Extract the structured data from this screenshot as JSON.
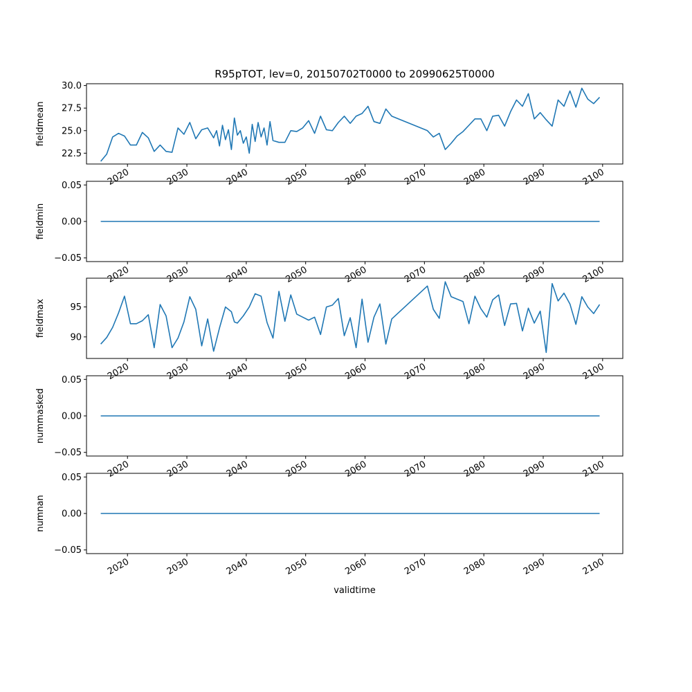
{
  "chart_data": {
    "type": "line",
    "title": "R95pTOT, lev=0, 20150702T0000 to 20990625T0000",
    "xlabel": "validtime",
    "xlim": [
      2013.1,
      2103.4
    ],
    "x_ticks": [
      2020,
      2030,
      2040,
      2050,
      2060,
      2070,
      2080,
      2090,
      2100
    ],
    "x_tick_labels": [
      "2020",
      "2030",
      "2040",
      "2050",
      "2060",
      "2070",
      "2080",
      "2090",
      "2100"
    ],
    "line_color": "#1f77b4",
    "panels": [
      {
        "ylabel": "fieldmean",
        "ylim": [
          21.3,
          30.2
        ],
        "y_ticks": [
          22.5,
          25.0,
          27.5,
          30.0
        ],
        "y_tick_labels": [
          "22.5",
          "25.0",
          "27.5",
          "30.0"
        ],
        "x": [
          2015.5,
          2016.5,
          2017.5,
          2018.5,
          2019.5,
          2020.5,
          2021.5,
          2022.5,
          2023.5,
          2024.5,
          2025.5,
          2026.5,
          2027.5,
          2028.5,
          2029.5,
          2030.5,
          2031.5,
          2032.5,
          2033.5,
          2034.5,
          2035.0,
          2035.5,
          2036.0,
          2036.5,
          2037.0,
          2037.5,
          2038.0,
          2038.5,
          2039.0,
          2039.5,
          2040.0,
          2040.5,
          2041.0,
          2041.5,
          2042.0,
          2042.5,
          2043.0,
          2043.5,
          2044.0,
          2044.5,
          2045.5,
          2046.5,
          2047.5,
          2048.5,
          2049.5,
          2050.5,
          2051.5,
          2052.5,
          2053.5,
          2054.5,
          2055.5,
          2056.5,
          2057.5,
          2058.5,
          2059.5,
          2060.5,
          2061.5,
          2062.5,
          2063.5,
          2064.5,
          2070.5,
          2071.5,
          2072.5,
          2073.5,
          2074.5,
          2075.5,
          2076.5,
          2077.5,
          2078.5,
          2079.5,
          2080.5,
          2081.5,
          2082.5,
          2083.5,
          2084.5,
          2085.5,
          2086.5,
          2087.5,
          2088.5,
          2089.5,
          2090.5,
          2091.5,
          2092.5,
          2093.5,
          2094.5,
          2095.5,
          2096.5,
          2097.5,
          2098.5,
          2099.5
        ],
        "y": [
          21.6,
          22.4,
          24.3,
          24.7,
          24.4,
          23.4,
          23.4,
          24.8,
          24.2,
          22.7,
          23.4,
          22.7,
          22.6,
          25.3,
          24.6,
          25.9,
          24.1,
          25.1,
          25.3,
          24.2,
          25.0,
          23.3,
          25.6,
          24.0,
          25.1,
          22.9,
          26.4,
          24.5,
          25.0,
          23.6,
          24.3,
          22.5,
          25.7,
          23.8,
          25.9,
          24.3,
          25.3,
          23.4,
          26.0,
          23.9,
          23.7,
          23.7,
          25.0,
          24.9,
          25.3,
          26.1,
          24.7,
          26.6,
          25.1,
          25.0,
          25.9,
          26.6,
          25.8,
          26.6,
          26.9,
          27.7,
          26.0,
          25.8,
          27.4,
          26.6,
          25.0,
          24.3,
          24.7,
          22.9,
          23.6,
          24.4,
          24.9,
          25.6,
          26.3,
          26.3,
          25.0,
          26.6,
          26.7,
          25.5,
          27.1,
          28.4,
          27.7,
          29.1,
          26.3,
          27.0,
          26.2,
          25.5,
          28.4,
          27.7,
          29.4,
          27.6,
          29.7,
          28.5,
          28.0,
          28.7
        ]
      },
      {
        "ylabel": "fieldmin",
        "ylim": [
          -0.055,
          0.055
        ],
        "y_ticks": [
          -0.05,
          0.0,
          0.05
        ],
        "y_tick_labels": [
          "−0.05",
          "0.00",
          "0.05"
        ],
        "x": [
          2015.5,
          2099.5
        ],
        "y": [
          0.0,
          0.0
        ]
      },
      {
        "ylabel": "fieldmax",
        "ylim": [
          86.4,
          99.8
        ],
        "y_ticks": [
          90,
          95
        ],
        "y_tick_labels": [
          "90",
          "95"
        ],
        "x": [
          2015.5,
          2016.5,
          2017.5,
          2018.5,
          2019.5,
          2020.5,
          2021.5,
          2022.5,
          2023.5,
          2024.5,
          2025.5,
          2026.5,
          2027.5,
          2028.5,
          2029.5,
          2030.5,
          2031.5,
          2032.5,
          2033.5,
          2034.5,
          2035.5,
          2036.5,
          2037.5,
          2038.0,
          2038.5,
          2039.5,
          2040.5,
          2041.5,
          2042.5,
          2043.5,
          2044.5,
          2045.5,
          2046.5,
          2047.5,
          2048.5,
          2049.5,
          2050.5,
          2051.5,
          2052.5,
          2053.5,
          2054.5,
          2055.5,
          2056.5,
          2057.5,
          2058.5,
          2059.5,
          2060.5,
          2061.5,
          2062.5,
          2063.5,
          2064.5,
          2070.5,
          2071.5,
          2072.5,
          2073.5,
          2074.5,
          2075.5,
          2076.5,
          2077.5,
          2078.5,
          2079.5,
          2080.5,
          2081.5,
          2082.5,
          2083.5,
          2084.5,
          2085.5,
          2086.5,
          2087.5,
          2088.5,
          2089.5,
          2090.5,
          2091.5,
          2092.5,
          2093.5,
          2094.5,
          2095.5,
          2096.5,
          2097.5,
          2098.5,
          2099.5
        ],
        "y": [
          88.8,
          89.9,
          91.6,
          94.0,
          96.8,
          92.2,
          92.2,
          92.7,
          93.7,
          88.2,
          95.4,
          93.5,
          88.2,
          89.8,
          92.5,
          96.7,
          94.6,
          88.5,
          93.0,
          87.6,
          91.5,
          95.0,
          94.2,
          92.5,
          92.3,
          93.5,
          95.0,
          97.2,
          96.8,
          92.4,
          89.8,
          97.6,
          92.6,
          97.0,
          93.8,
          93.3,
          92.8,
          93.3,
          90.4,
          95.0,
          95.3,
          96.4,
          90.2,
          93.2,
          88.2,
          96.3,
          89.1,
          93.3,
          95.5,
          88.8,
          93.0,
          98.5,
          94.6,
          93.1,
          99.2,
          96.7,
          96.3,
          95.9,
          92.2,
          96.8,
          94.7,
          93.3,
          96.2,
          97.0,
          91.9,
          95.5,
          95.6,
          91.0,
          94.8,
          92.3,
          94.3,
          87.4,
          98.9,
          96.0,
          97.3,
          95.5,
          92.1,
          96.7,
          95.0,
          93.9,
          95.4
        ]
      },
      {
        "ylabel": "nummasked",
        "ylim": [
          -0.055,
          0.055
        ],
        "y_ticks": [
          -0.05,
          0.0,
          0.05
        ],
        "y_tick_labels": [
          "−0.05",
          "0.00",
          "0.05"
        ],
        "x": [
          2015.5,
          2099.5
        ],
        "y": [
          0.0,
          0.0
        ]
      },
      {
        "ylabel": "numnan",
        "ylim": [
          -0.055,
          0.055
        ],
        "y_ticks": [
          -0.05,
          0.0,
          0.05
        ],
        "y_tick_labels": [
          "−0.05",
          "0.00",
          "0.05"
        ],
        "x": [
          2015.5,
          2099.5
        ],
        "y": [
          0.0,
          0.0
        ]
      }
    ]
  }
}
